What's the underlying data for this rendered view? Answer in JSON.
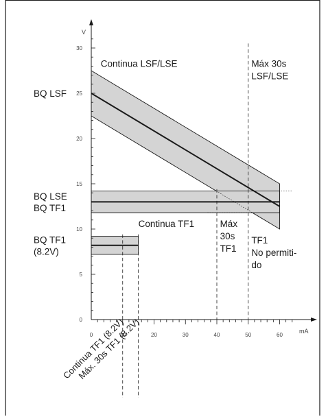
{
  "chart_data": {
    "type": "line",
    "xlabel": "mA",
    "ylabel": "V",
    "xlim": [
      0,
      67
    ],
    "ylim": [
      0,
      33
    ],
    "x_ticks": [
      10,
      20,
      30,
      40,
      50,
      60
    ],
    "x_tick_labels": [
      "10",
      "20",
      "30",
      "40",
      "50",
      "60"
    ],
    "y_ticks": [
      5,
      10,
      15,
      20,
      25,
      30
    ],
    "y_tick_labels": [
      "5",
      "10",
      "15",
      "20",
      "25",
      "30"
    ],
    "x_minor_step": 2,
    "y_minor_step": 1,
    "grid": false,
    "bands": [
      {
        "name": "BQ LSF",
        "x": [
          0,
          60
        ],
        "center": [
          25,
          12.5
        ],
        "upper": [
          27.5,
          15
        ],
        "lower": [
          22.5,
          10
        ],
        "fill": "#d4d4d4"
      },
      {
        "name": "BQ LSE BQ TF1",
        "x": [
          0,
          60
        ],
        "center": [
          13,
          13
        ],
        "upper": [
          14.2,
          14.2
        ],
        "lower": [
          11.8,
          11.8
        ],
        "fill": "#d4d4d4"
      },
      {
        "name": "BQ TF1 (8.2V)",
        "x": [
          0,
          15
        ],
        "center": [
          8.2,
          8.2
        ],
        "upper": [
          9.2,
          9.2
        ],
        "lower": [
          7.2,
          7.2
        ],
        "fill": "#d4d4d4"
      }
    ],
    "dashed_verticals": [
      10,
      15,
      40,
      50
    ],
    "left_labels": [
      {
        "lines": [
          "BQ LSF"
        ],
        "y": 25
      },
      {
        "lines": [
          "BQ LSE",
          "BQ TF1"
        ],
        "y": 13
      },
      {
        "lines": [
          "BQ TF1",
          "(8.2V)"
        ],
        "y": 8.2
      }
    ],
    "region_labels": [
      {
        "lines": [
          "Continua LSF/LSE"
        ],
        "x": 3,
        "y": 28.3
      },
      {
        "lines": [
          "Máx 30s",
          "LSF/LSE"
        ],
        "x": 51,
        "y": 28.3
      },
      {
        "lines": [
          "Continua TF1"
        ],
        "x": 15,
        "y": 10.6
      },
      {
        "lines": [
          "Máx",
          "30s",
          "TF1"
        ],
        "x": 41,
        "y": 10.6
      },
      {
        "lines": [
          "TF1",
          "No permiti-",
          "do"
        ],
        "x": 51,
        "y": 8.8
      }
    ],
    "rotated_labels": [
      "Continua TF1 (8.2V)",
      "Máx. 30s TF1 (8.2V)"
    ],
    "rotated_label_x": [
      10,
      15
    ],
    "origin_labels": [
      "0",
      "0"
    ]
  },
  "colors": {
    "band": "#d4d4d4",
    "line": "#1a1a1a",
    "axis": "#1a1a1a",
    "frame": "#1a1a1a"
  }
}
